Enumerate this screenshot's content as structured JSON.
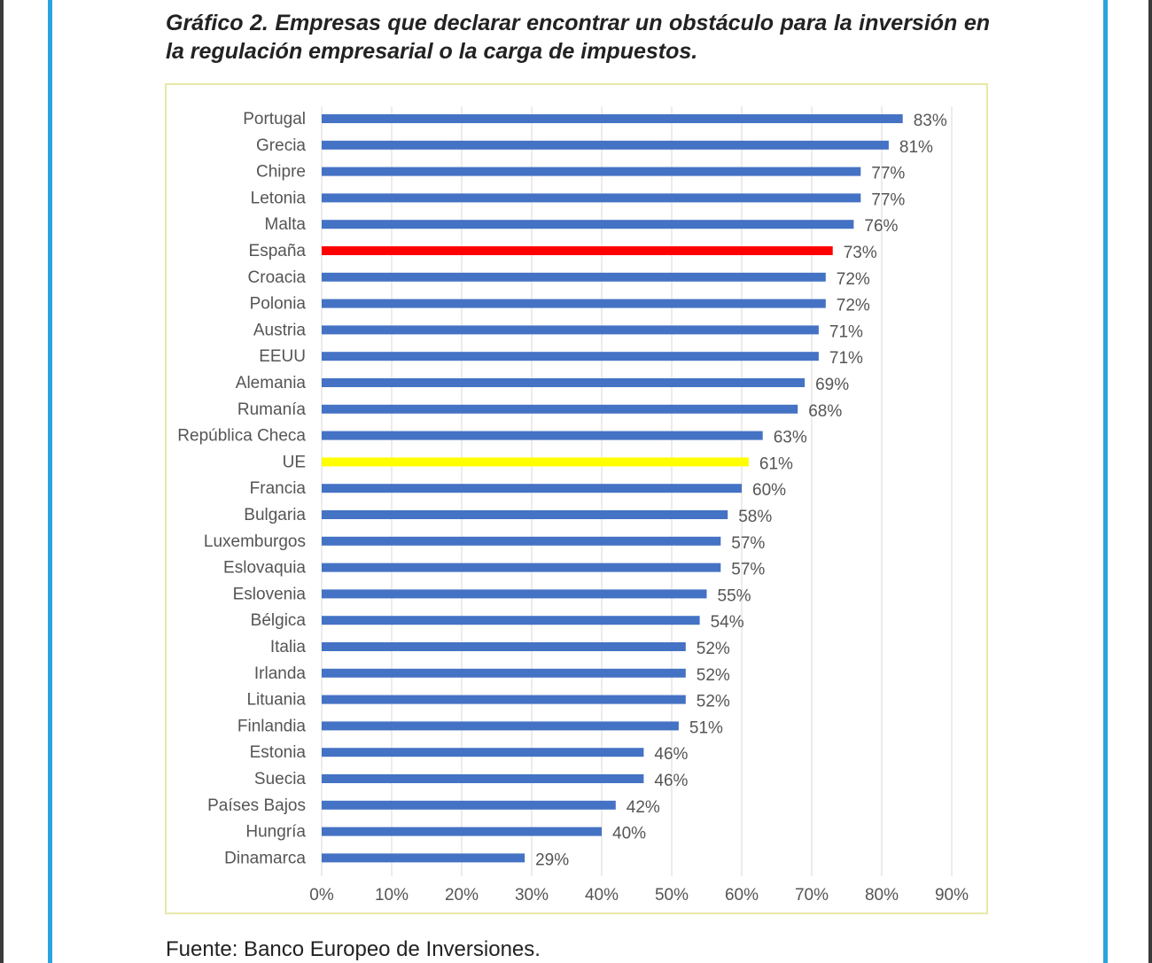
{
  "page": {
    "source": "Fuente: Banco Europeo de Inversiones."
  },
  "colors": {
    "default_bar": "#4472c4",
    "highlight_spain": "#ff0000",
    "highlight_eu": "#ffff00",
    "gridline": "#d9d9d9",
    "frame": "#2aa3df",
    "chart_border": "#e8e8a8"
  },
  "chart_data": {
    "type": "bar",
    "orientation": "horizontal",
    "title": "Gráfico 2. Empresas que declarar encontrar un obstáculo para la inversión en la regulación empresarial o la carga de impuestos.",
    "categories": [
      "Portugal",
      "Grecia",
      "Chipre",
      "Letonia",
      "Malta",
      "España",
      "Croacia",
      "Polonia",
      "Austria",
      "EEUU",
      "Alemania",
      "Rumanía",
      "República Checa",
      "UE",
      "Francia",
      "Bulgaria",
      "Luxemburgos",
      "Eslovaquia",
      "Eslovenia",
      "Bélgica",
      "Italia",
      "Irlanda",
      "Lituania",
      "Finlandia",
      "Estonia",
      "Suecia",
      "Países Bajos",
      "Hungría",
      "Dinamarca"
    ],
    "values": [
      83,
      81,
      77,
      77,
      76,
      73,
      72,
      72,
      71,
      71,
      69,
      68,
      63,
      61,
      60,
      58,
      57,
      57,
      55,
      54,
      52,
      52,
      52,
      51,
      46,
      46,
      42,
      40,
      29
    ],
    "value_labels": [
      "83%",
      "81%",
      "77%",
      "77%",
      "76%",
      "73%",
      "72%",
      "72%",
      "71%",
      "71%",
      "69%",
      "68%",
      "63%",
      "61%",
      "60%",
      "58%",
      "57%",
      "57%",
      "55%",
      "54%",
      "52%",
      "52%",
      "52%",
      "51%",
      "46%",
      "46%",
      "42%",
      "40%",
      "29%"
    ],
    "highlights": {
      "España": "highlight_spain",
      "UE": "highlight_eu"
    },
    "xlim": [
      0,
      90
    ],
    "xticks": [
      0,
      10,
      20,
      30,
      40,
      50,
      60,
      70,
      80,
      90
    ],
    "xtick_labels": [
      "0%",
      "10%",
      "20%",
      "30%",
      "40%",
      "50%",
      "60%",
      "70%",
      "80%",
      "90%"
    ],
    "xlabel": "",
    "ylabel": "",
    "grid": true,
    "legend": "none"
  }
}
